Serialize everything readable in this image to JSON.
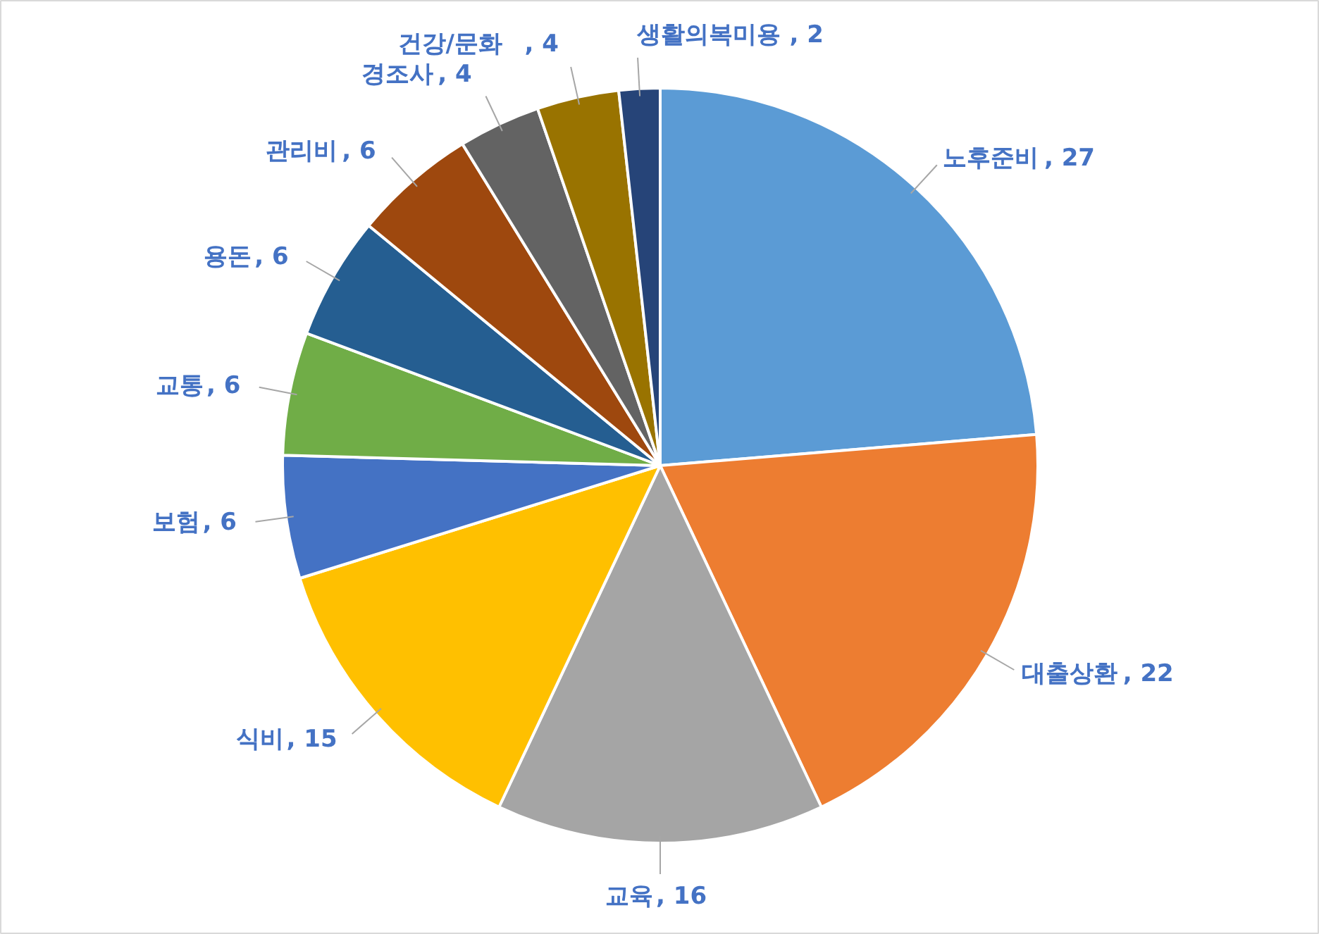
{
  "chart_data": {
    "type": "pie",
    "categories": [
      "노후준비",
      "대출상환",
      "교육",
      "식비",
      "보험",
      "교통",
      "용돈",
      "관리비",
      "경조사",
      "건강/문화",
      "생활의복미용"
    ],
    "values": [
      27,
      22,
      16,
      15,
      6,
      6,
      6,
      6,
      4,
      4,
      2
    ],
    "value_labels": [
      ", 27",
      ", 22",
      ", 16",
      ", 15",
      ", 6",
      ", 6",
      ", 6",
      ", 6",
      ", 4",
      ", 4",
      ", 2"
    ],
    "colors": [
      "#5b9bd5",
      "#ed7d31",
      "#a5a5a5",
      "#ffc000",
      "#4472c4",
      "#70ad47",
      "#255e91",
      "#9e480e",
      "#636363",
      "#997300",
      "#264478"
    ]
  }
}
